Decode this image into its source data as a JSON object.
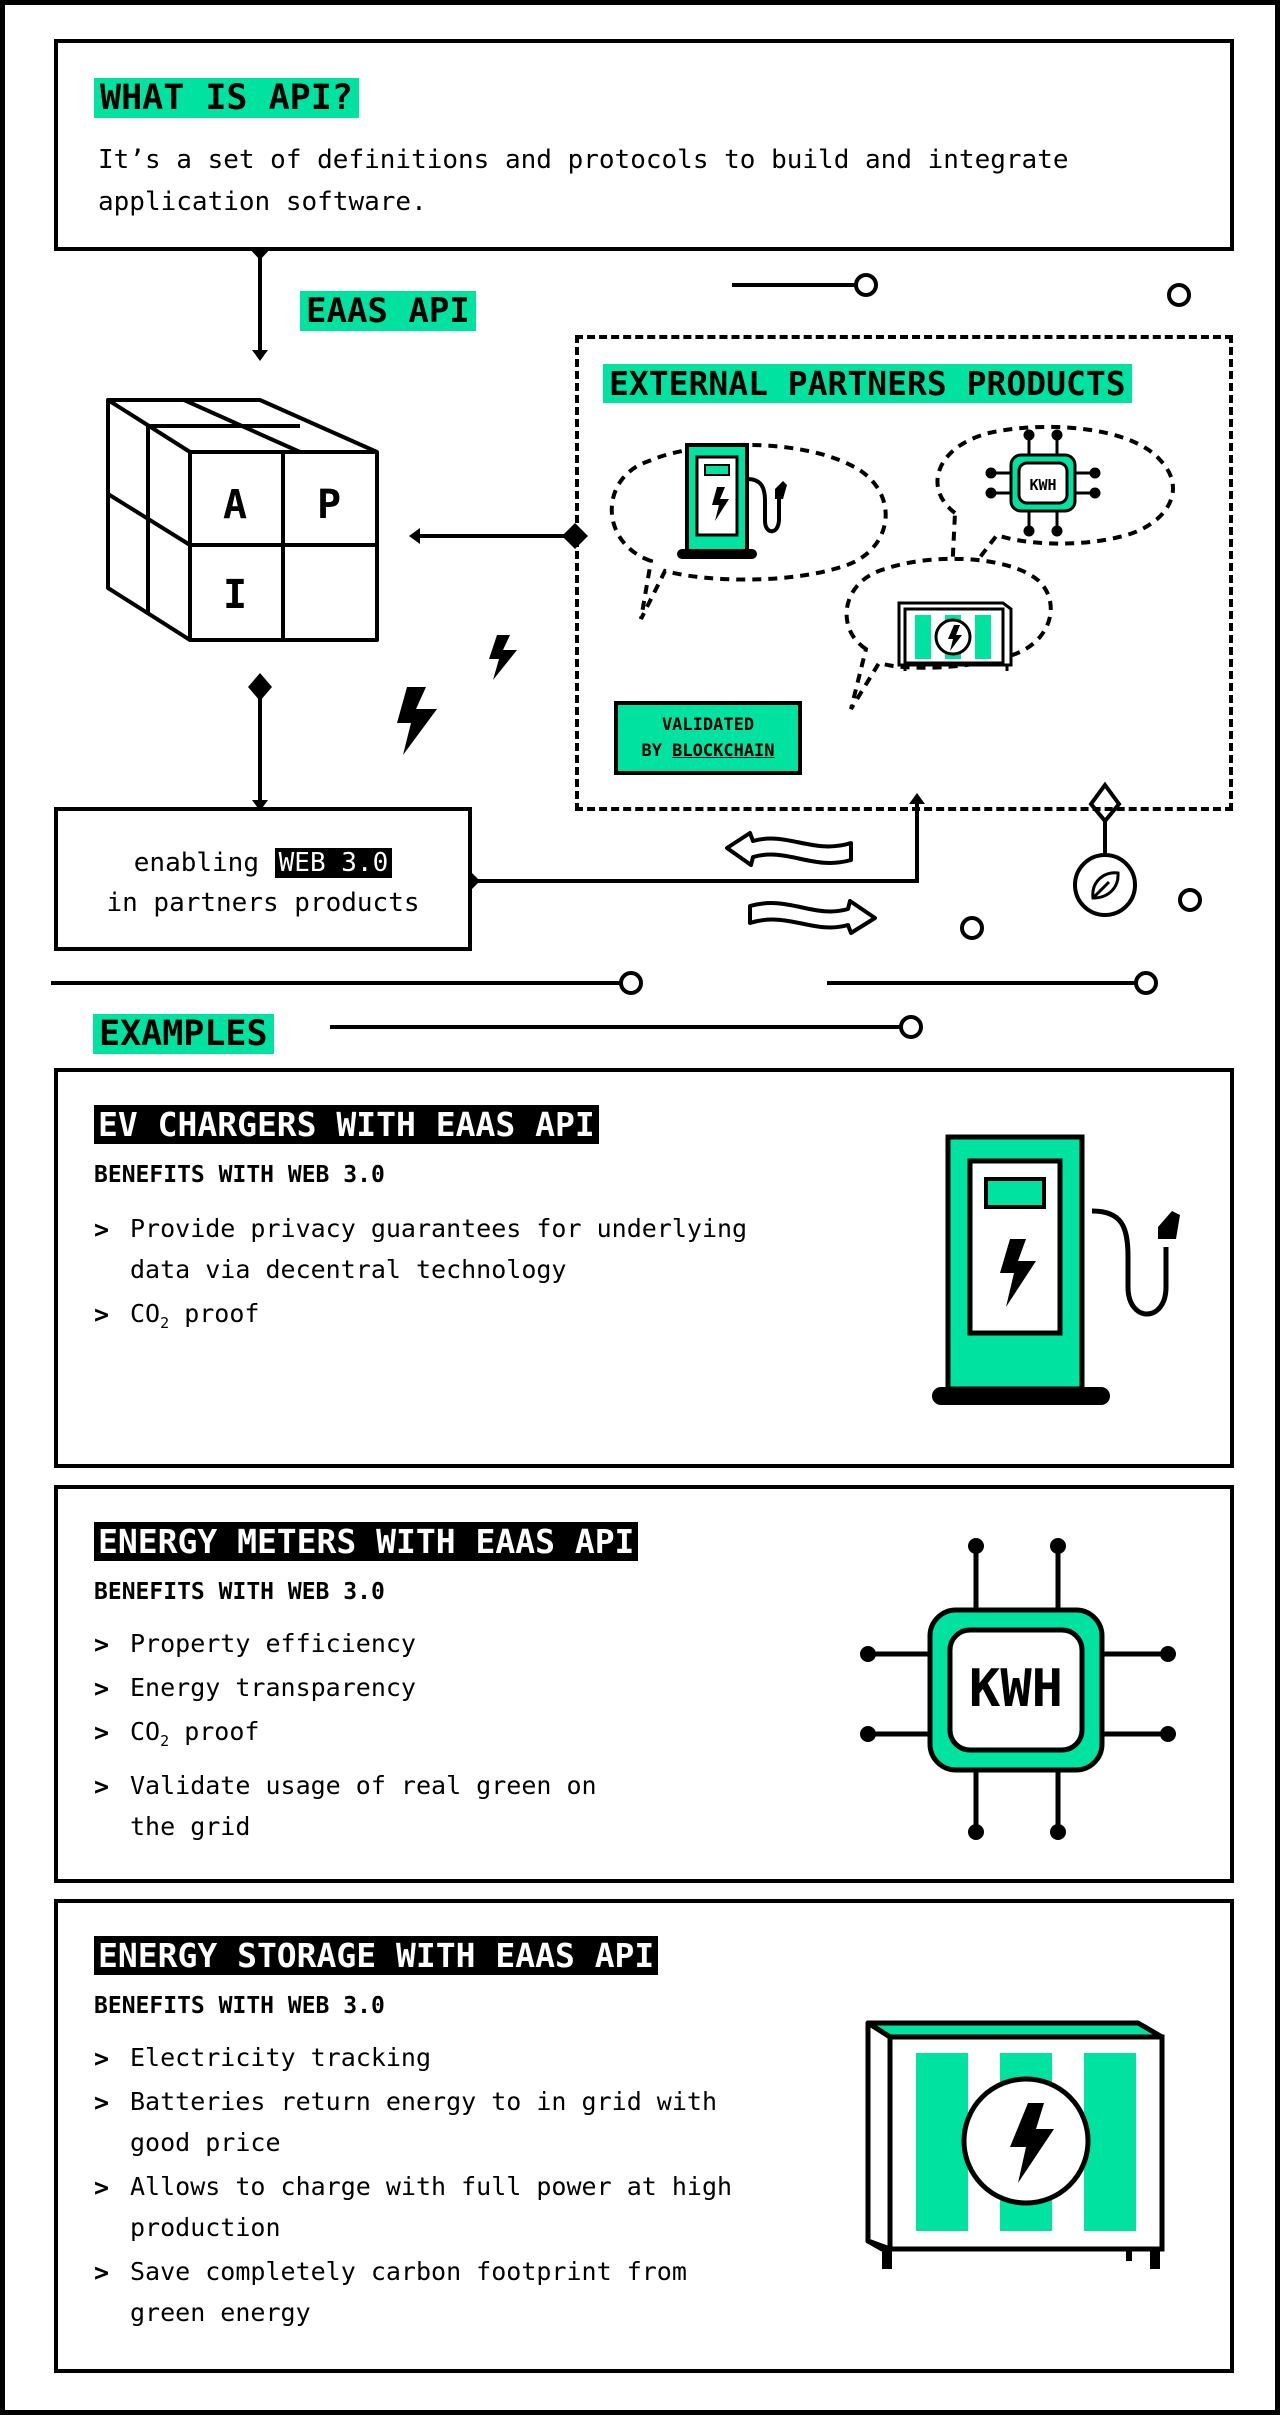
{
  "intro": {
    "title": "WHAT IS API?",
    "text": "It’s a set of definitions and protocols to build and integrate application software."
  },
  "eaas_label": "EAAS API",
  "cube_letters": [
    "A",
    "P",
    "I"
  ],
  "external": {
    "title": "EXTERNAL PARTNERS PRODUCTS",
    "meter_label": "KWH",
    "validated_line1": "VALIDATED",
    "validated_by": "BY ",
    "validated_chain": "BLOCKCHAIN"
  },
  "enabling": {
    "before": "enabling ",
    "highlight": "WEB 3.0",
    "line2": "in partners products"
  },
  "examples_label": "EXAMPLES",
  "cards": [
    {
      "title": "EV CHARGERS WITH EAAS API",
      "subtitle": "BENEFITS WITH WEB 3.0",
      "items": [
        {
          "text": "Provide privacy guarantees for underlying data via decentral technology"
        },
        {
          "text": "CO",
          "sub": "2",
          "tail": " proof"
        }
      ]
    },
    {
      "title": "ENERGY METERS WITH EAAS API",
      "subtitle": "BENEFITS WITH WEB 3.0",
      "meter_label": "KWH",
      "items": [
        {
          "text": "Property efficiency"
        },
        {
          "text": "Energy transparency"
        },
        {
          "text": "CO",
          "sub": "2",
          "tail": " proof"
        },
        {
          "text": "Validate usage of real green on the grid"
        }
      ]
    },
    {
      "title": "ENERGY STORAGE WITH EAAS API",
      "subtitle": "BENEFITS WITH WEB 3.0",
      "items": [
        {
          "text": "Electricity tracking"
        },
        {
          "text": "Batteries return energy to in grid with good price"
        },
        {
          "text": "Allows to charge with full power at high production"
        },
        {
          "text": "Save completely carbon footprint from green energy"
        }
      ]
    }
  ],
  "colors": {
    "accent": "#00e3a0",
    "ink": "#000000",
    "paper": "#ffffff"
  },
  "icons": [
    "ev-charger-icon",
    "energy-meter-icon",
    "energy-storage-icon",
    "lightning-icon",
    "leaf-icon",
    "api-cube-icon"
  ]
}
